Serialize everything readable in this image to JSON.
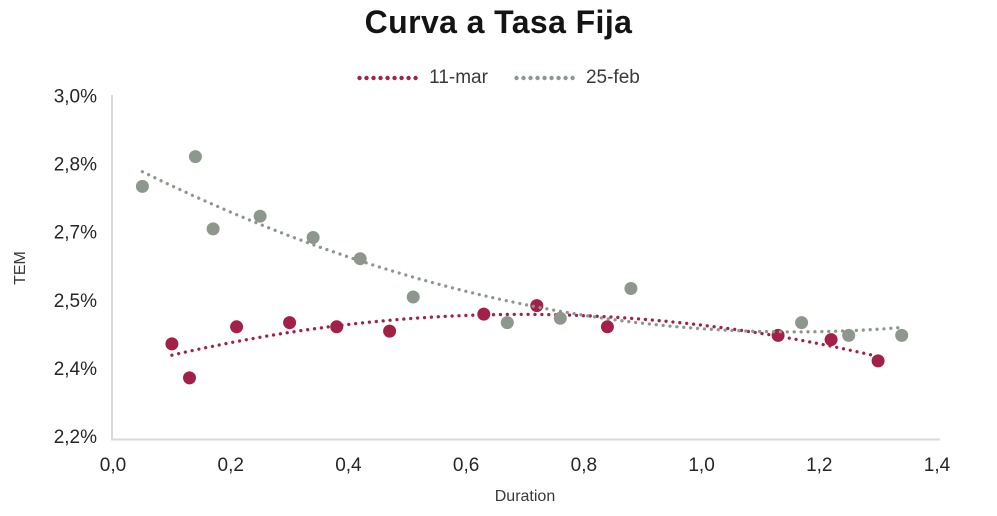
{
  "page": {
    "background": "#ffffff"
  },
  "header": {
    "title": "Curva a Tasa Fija"
  },
  "legend": {
    "items": [
      {
        "label": "11-mar",
        "color": "#a32049"
      },
      {
        "label": "25-feb",
        "color": "#8d978e"
      }
    ]
  },
  "chart_data": {
    "type": "scatter",
    "title": "Curva a Tasa Fija",
    "xlabel": "Duration",
    "ylabel": "TEM",
    "xlim": [
      0.0,
      1.4
    ],
    "ylim": [
      2.2,
      3.0
    ],
    "grid": false,
    "legend_position": "top-center",
    "axis_line_color": "#d9d9d9",
    "x_ticks": {
      "values": [
        0.0,
        0.2,
        0.4,
        0.6,
        0.8,
        1.0,
        1.2,
        1.4
      ],
      "labels": [
        "0,0",
        "0,2",
        "0,4",
        "0,6",
        "0,8",
        "1,0",
        "1,2",
        "1,4"
      ]
    },
    "y_ticks": {
      "values": [
        3.0,
        2.84,
        2.68,
        2.52,
        2.36,
        2.2
      ],
      "labels": [
        "3,0%",
        "2,8%",
        "2,7%",
        "2,5%",
        "2,4%",
        "2,2%"
      ]
    },
    "series": [
      {
        "name": "11-mar",
        "color": "#a32049",
        "marker": "circle",
        "trendline": "polynomial-order-2-dotted",
        "points": [
          [
            0.1,
            2.42
          ],
          [
            0.13,
            2.34
          ],
          [
            0.21,
            2.46
          ],
          [
            0.3,
            2.47
          ],
          [
            0.38,
            2.46
          ],
          [
            0.47,
            2.45
          ],
          [
            0.63,
            2.49
          ],
          [
            0.72,
            2.51
          ],
          [
            0.84,
            2.46
          ],
          [
            1.13,
            2.44
          ],
          [
            1.22,
            2.43
          ],
          [
            1.3,
            2.38
          ]
        ]
      },
      {
        "name": "25-feb",
        "color": "#8d978e",
        "marker": "circle",
        "trendline": "polynomial-order-2-dotted",
        "points": [
          [
            0.05,
            2.79
          ],
          [
            0.14,
            2.86
          ],
          [
            0.17,
            2.69
          ],
          [
            0.25,
            2.72
          ],
          [
            0.34,
            2.67
          ],
          [
            0.42,
            2.62
          ],
          [
            0.51,
            2.53
          ],
          [
            0.67,
            2.47
          ],
          [
            0.76,
            2.48
          ],
          [
            0.88,
            2.55
          ],
          [
            1.17,
            2.47
          ],
          [
            1.25,
            2.44
          ],
          [
            1.34,
            2.44
          ]
        ]
      }
    ]
  }
}
